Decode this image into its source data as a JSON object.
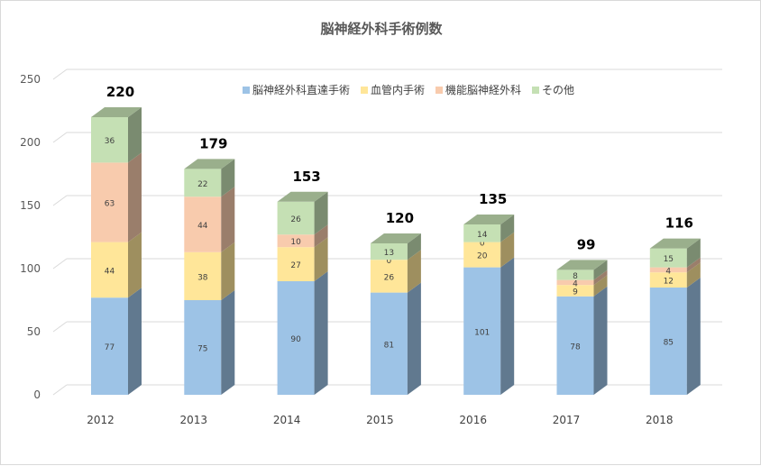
{
  "chart_data": {
    "type": "bar",
    "stacked": true,
    "style": "3d-column",
    "title": "脳神経外科手術例数",
    "categories": [
      "2012",
      "2013",
      "2014",
      "2015",
      "2016",
      "2017",
      "2018"
    ],
    "series": [
      {
        "name": "脳神経外科直達手術",
        "color": "#9dc3e6",
        "values": [
          77,
          75,
          90,
          81,
          101,
          78,
          85
        ]
      },
      {
        "name": "血管内手術",
        "color": "#ffe699",
        "values": [
          44,
          38,
          27,
          26,
          20,
          9,
          12
        ]
      },
      {
        "name": "機能脳神経外科",
        "color": "#f8cbad",
        "values": [
          63,
          44,
          10,
          0,
          0,
          4,
          4
        ]
      },
      {
        "name": "その他",
        "color": "#c5e0b4",
        "values": [
          36,
          22,
          26,
          13,
          14,
          8,
          15
        ]
      }
    ],
    "totals": [
      220,
      179,
      153,
      120,
      135,
      99,
      116
    ],
    "ylim": [
      0,
      250
    ],
    "yticks": [
      0,
      50,
      100,
      150,
      200,
      250
    ],
    "grid": true,
    "legend_position": "top-right"
  }
}
